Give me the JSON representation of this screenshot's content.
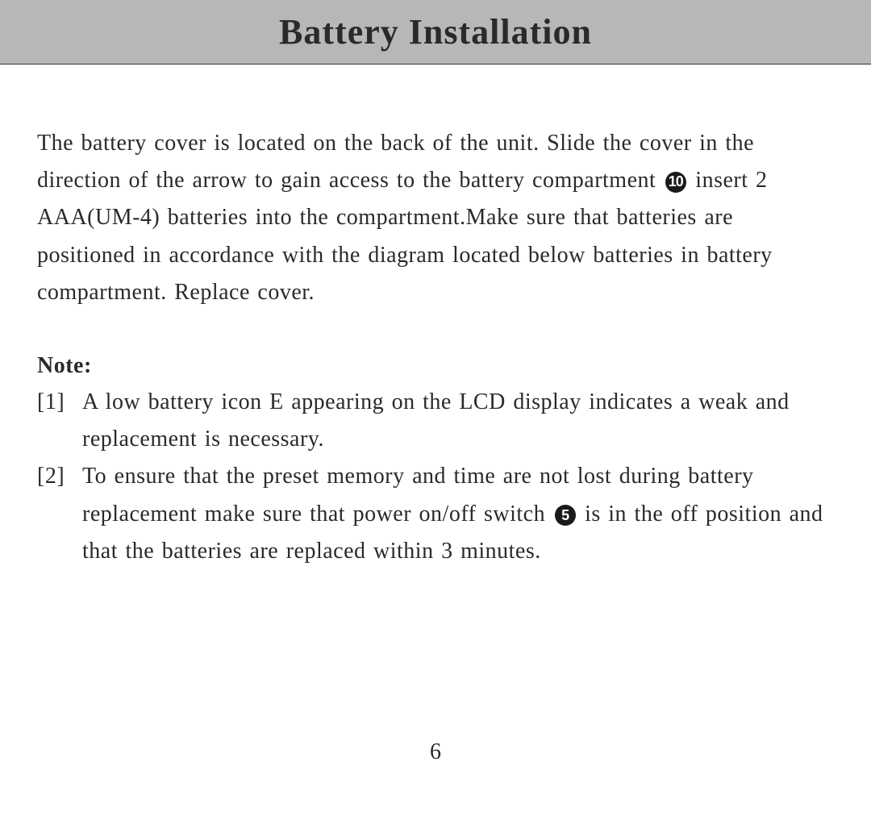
{
  "header": {
    "title": "Battery Installation"
  },
  "body": {
    "para_part1": "The battery cover is located on the back of the unit. Slide the cover in the direction of the arrow to gain access to the battery compartment ",
    "circled_10": "10",
    "para_part2": " insert 2 AAA(UM-4) batteries into the compartment.Make sure that batteries are positioned in accordance with the diagram located below batteries in battery compartment. Replace cover."
  },
  "note": {
    "heading": "Note:",
    "items": [
      {
        "marker": "[1]",
        "text": "A low battery icon E appearing on the LCD display indicates a weak and replacement is necessary."
      },
      {
        "marker": "[2]",
        "text_part1": "To ensure that the preset memory and time are not lost during battery replacement make sure that power on/off switch ",
        "circled_5": "5",
        "text_part2": " is in the off position and that the batteries are replaced within 3 minutes."
      }
    ]
  },
  "page_number": "6"
}
